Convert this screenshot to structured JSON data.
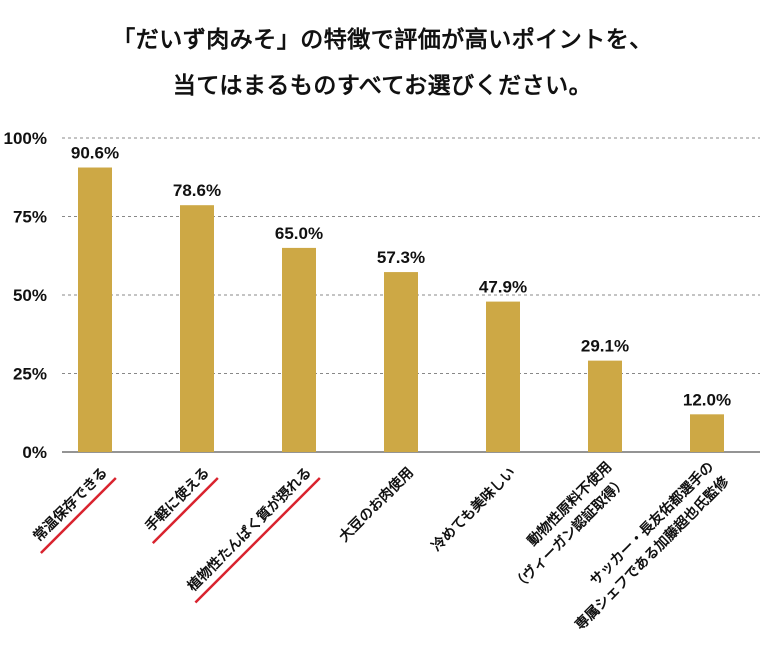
{
  "chart_data": {
    "type": "bar",
    "title_line1": "「だいず肉みそ」の特徴で評価が高いポイントを、",
    "title_line2": "当てはまるものすべてお選びください。",
    "categories": [
      [
        "常温保存できる"
      ],
      [
        "手軽に使える"
      ],
      [
        "植物性たんぱく質が摂れる"
      ],
      [
        "大豆のお肉使用"
      ],
      [
        "冷めても美味しい"
      ],
      [
        "動物性原料不使用",
        "（ヴィーガン認証取得）"
      ],
      [
        "サッカー・長友佑都選手の",
        "専属シェフである加藤超也氏監修"
      ]
    ],
    "values": [
      90.6,
      78.6,
      65.0,
      57.3,
      47.9,
      29.1,
      12.0
    ],
    "value_labels": [
      "90.6%",
      "78.6%",
      "65.0%",
      "57.3%",
      "47.9%",
      "29.1%",
      "12.0%"
    ],
    "highlighted": [
      true,
      true,
      true,
      false,
      false,
      false,
      false
    ],
    "yticks": [
      0,
      25,
      50,
      75,
      100
    ],
    "ytick_labels": [
      "0%",
      "25%",
      "50%",
      "75%",
      "100%"
    ],
    "ylim": [
      0,
      100
    ],
    "grid": true,
    "bar_color": "#cda845",
    "highlight_color": "#d9232e",
    "grid_color": "#888888"
  }
}
